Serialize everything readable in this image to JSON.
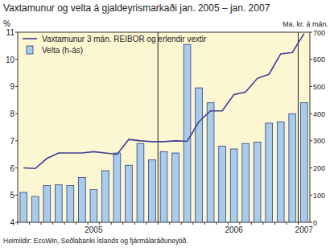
{
  "chart_data": {
    "type": "bar",
    "title": "Vaxtamunur og velta á gjaldeyrismarkaði jan. 2005 – jan. 2007",
    "ylabel": "%",
    "y2label": "Ma. kr. á mán.",
    "source": "Heimildir: EcoWin, Seðlabanki Íslands og fjármálaráðuneytið.",
    "categories": [
      null,
      null,
      null,
      null,
      null,
      null,
      "2005",
      null,
      null,
      null,
      null,
      null,
      null,
      null,
      null,
      null,
      null,
      null,
      "2006",
      null,
      null,
      null,
      null,
      null,
      "2007"
    ],
    "series": [
      {
        "name": "Vaxtamunur 3 mán. REIBOR og erlendir vextir",
        "type": "line",
        "color": "#3d3f92",
        "values": [
          6.0,
          5.98,
          6.35,
          6.55,
          6.55,
          6.55,
          6.6,
          6.55,
          6.5,
          7.05,
          7.0,
          6.97,
          6.97,
          7.0,
          6.98,
          7.7,
          8.1,
          8.1,
          8.7,
          8.8,
          9.3,
          9.45,
          10.2,
          10.25,
          10.95
        ]
      },
      {
        "name": "Velta (h-ás)",
        "type": "bar",
        "axis": "y2",
        "color": "#a9cce9",
        "values": [
          110,
          95,
          135,
          138,
          135,
          165,
          120,
          190,
          255,
          210,
          290,
          230,
          260,
          255,
          655,
          495,
          440,
          280,
          270,
          290,
          295,
          365,
          370,
          400,
          440
        ]
      }
    ],
    "ylim": [
      4,
      11
    ],
    "yticks": [
      4,
      5,
      6,
      7,
      8,
      9,
      10,
      11
    ],
    "y2lim": [
      0,
      700
    ],
    "y2ticks": [
      0,
      100,
      200,
      300,
      400,
      500,
      600,
      700
    ],
    "grid": false,
    "legend": "upper left"
  }
}
